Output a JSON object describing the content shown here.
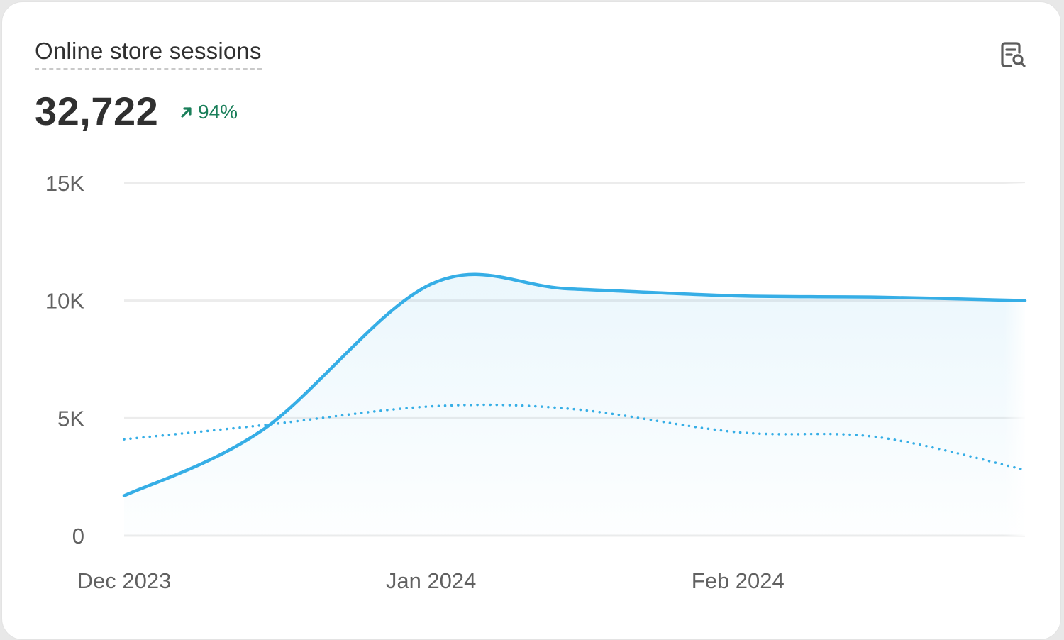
{
  "card": {
    "title": "Online store sessions",
    "value": "32,722",
    "change": "94%",
    "change_direction": "up",
    "change_color": "#1a7f5a",
    "icon": "search-report-icon"
  },
  "chart_data": {
    "type": "area",
    "x_labels": [
      "Dec 2023",
      "Jan 2024",
      "Feb 2024"
    ],
    "y_ticks": [
      "15K",
      "10K",
      "5K",
      "0"
    ],
    "ylim": [
      0,
      15000
    ],
    "x": [
      "2023-12-01",
      "2023-12-15",
      "2024-01-01",
      "2024-01-15",
      "2024-02-01",
      "2024-02-15",
      "2024-03-01"
    ],
    "series": [
      {
        "values": [
          1700,
          4500,
          10700,
          10500,
          10200,
          10150,
          10000
        ],
        "style": "solid",
        "color": "#36aee6"
      },
      {
        "values": [
          4100,
          4700,
          5500,
          5400,
          4400,
          4200,
          2800
        ],
        "style": "dotted",
        "color": "#36aee6"
      }
    ],
    "grid": true
  }
}
